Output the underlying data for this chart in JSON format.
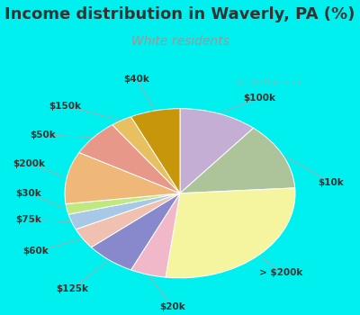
{
  "title": "Income distribution in Waverly, PA (%)",
  "subtitle": "White residents",
  "labels": [
    "$100k",
    "$10k",
    "> $200k",
    "$20k",
    "$125k",
    "$60k",
    "$75k",
    "$30k",
    "$200k",
    "$50k",
    "$150k",
    "$40k"
  ],
  "sizes": [
    11,
    13,
    28,
    5,
    7,
    4,
    3,
    2,
    10,
    7,
    3,
    7
  ],
  "colors": [
    "#c4aed4",
    "#adc49a",
    "#f5f5a0",
    "#f0b8c8",
    "#8888cc",
    "#f0c0b0",
    "#a8c8e8",
    "#c0e880",
    "#f0b878",
    "#e89888",
    "#e8c060",
    "#c8960a"
  ],
  "startangle": 90,
  "bg_cyan": "#00f0f0",
  "bg_chart": "#e0f0e0",
  "title_color": "#333333",
  "subtitle_color": "#999999",
  "title_fontsize": 13,
  "subtitle_fontsize": 10,
  "label_fontsize": 7.5,
  "label_color": "#333333",
  "line_color": "#aaaaaa",
  "watermark_color": "#aaaaaa"
}
